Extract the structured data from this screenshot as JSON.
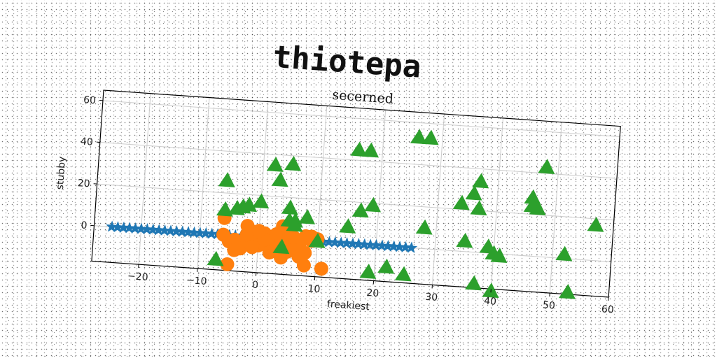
{
  "figure": {
    "title": "thiotepa"
  },
  "chart_data": {
    "type": "scatter",
    "title": "secerned",
    "xlabel": "freakiest",
    "ylabel": "stubby",
    "xlim": [
      -28,
      60
    ],
    "ylim": [
      -17,
      65
    ],
    "grid": true,
    "legend": "none",
    "x_ticks": [
      -20,
      -10,
      0,
      10,
      20,
      30,
      40,
      50,
      60
    ],
    "x_tick_labels": [
      "−20",
      "−10",
      "0",
      "10",
      "20",
      "30",
      "40",
      "50",
      "60"
    ],
    "y_ticks": [
      0,
      20,
      40,
      60
    ],
    "y_tick_labels": [
      "0",
      "20",
      "40",
      "60"
    ],
    "rotation_deg": 4,
    "series": [
      {
        "marker": "star",
        "color": "#1f77b4",
        "points": [
          [
            -25,
            0
          ],
          [
            -24,
            0
          ],
          [
            -23,
            0
          ],
          [
            -22,
            0
          ],
          [
            -21,
            0
          ],
          [
            -20,
            0
          ],
          [
            -19,
            0
          ],
          [
            -18,
            0
          ],
          [
            -17,
            0
          ],
          [
            -16,
            0
          ],
          [
            -15,
            0
          ],
          [
            -14,
            0
          ],
          [
            -13,
            0
          ],
          [
            -12,
            0
          ],
          [
            -11,
            0
          ],
          [
            -10,
            0
          ],
          [
            -9,
            0
          ],
          [
            -8,
            0
          ],
          [
            -7,
            0
          ],
          [
            -6,
            0
          ],
          [
            -5,
            0
          ],
          [
            -4,
            0
          ],
          [
            -3,
            0
          ],
          [
            -2,
            0
          ],
          [
            -1,
            0
          ],
          [
            0,
            0
          ],
          [
            1,
            0
          ],
          [
            2,
            0
          ],
          [
            3,
            0
          ],
          [
            4,
            0
          ],
          [
            5,
            0
          ],
          [
            6,
            0
          ],
          [
            7,
            0
          ],
          [
            8,
            0
          ],
          [
            9,
            0
          ],
          [
            10,
            0
          ],
          [
            11,
            0
          ],
          [
            12,
            0
          ],
          [
            13,
            0
          ],
          [
            14,
            0
          ],
          [
            15,
            0
          ],
          [
            16,
            0
          ],
          [
            17,
            0
          ],
          [
            18,
            0
          ],
          [
            19,
            0
          ],
          [
            20,
            0
          ],
          [
            21,
            0
          ],
          [
            22,
            0
          ],
          [
            23,
            0
          ],
          [
            24,
            0
          ],
          [
            25,
            0
          ],
          [
            26,
            0
          ]
        ]
      },
      {
        "marker": "circle",
        "color": "#ff7f0e",
        "points": [
          [
            -6,
            8
          ],
          [
            -2,
            5
          ],
          [
            4,
            6
          ],
          [
            -6,
            0
          ],
          [
            -5,
            -3
          ],
          [
            -4,
            -2
          ],
          [
            -2,
            -1
          ],
          [
            -1,
            -2
          ],
          [
            0,
            0
          ],
          [
            0,
            -4
          ],
          [
            1,
            -3
          ],
          [
            1,
            2
          ],
          [
            2,
            0
          ],
          [
            2,
            -5
          ],
          [
            3,
            -2
          ],
          [
            3,
            2
          ],
          [
            4,
            -4
          ],
          [
            5,
            0
          ],
          [
            5,
            -6
          ],
          [
            6,
            -3
          ],
          [
            6,
            1
          ],
          [
            7,
            -2
          ],
          [
            8,
            -6
          ],
          [
            8,
            2
          ],
          [
            9,
            0
          ],
          [
            10,
            1
          ],
          [
            -3,
            -6
          ],
          [
            -1,
            -5
          ],
          [
            2,
            -7
          ],
          [
            4,
            -1
          ],
          [
            6,
            -5
          ],
          [
            7,
            -8
          ],
          [
            3,
            -5
          ],
          [
            1,
            -1
          ],
          [
            -2,
            1
          ],
          [
            0,
            3
          ],
          [
            5,
            3
          ],
          [
            9,
            2
          ],
          [
            -5,
            -14
          ],
          [
            11,
            -13
          ],
          [
            8,
            -12
          ],
          [
            4,
            -9
          ],
          [
            -4,
            -7
          ]
        ]
      },
      {
        "marker": "triangle",
        "color": "#2ca02c",
        "points": [
          [
            16,
            45
          ],
          [
            18,
            45
          ],
          [
            26,
            53
          ],
          [
            28,
            53
          ],
          [
            48,
            43
          ],
          [
            2,
            35
          ],
          [
            5,
            36
          ],
          [
            3,
            28
          ],
          [
            37,
            34
          ],
          [
            36,
            28
          ],
          [
            46,
            28
          ],
          [
            47,
            23
          ],
          [
            34,
            23
          ],
          [
            37,
            21
          ],
          [
            -6,
            26
          ],
          [
            -2,
            15
          ],
          [
            -3,
            14
          ],
          [
            -4,
            13
          ],
          [
            -6,
            12
          ],
          [
            0,
            17
          ],
          [
            5,
            15
          ],
          [
            6,
            9
          ],
          [
            8,
            11
          ],
          [
            15,
            8
          ],
          [
            17,
            16
          ],
          [
            19,
            19
          ],
          [
            28,
            10
          ],
          [
            35,
            5
          ],
          [
            39,
            3
          ],
          [
            40,
            0
          ],
          [
            41,
            -1
          ],
          [
            52,
            2
          ],
          [
            57,
            17
          ],
          [
            19,
            -13
          ],
          [
            22,
            -10
          ],
          [
            25,
            -13
          ],
          [
            37,
            -15
          ],
          [
            40,
            -18
          ],
          [
            53,
            -16
          ],
          [
            4,
            -4
          ],
          [
            10,
            0
          ],
          [
            -7,
            -12
          ],
          [
            46,
            24
          ],
          [
            5,
            9
          ],
          [
            6,
            7
          ]
        ]
      }
    ]
  }
}
